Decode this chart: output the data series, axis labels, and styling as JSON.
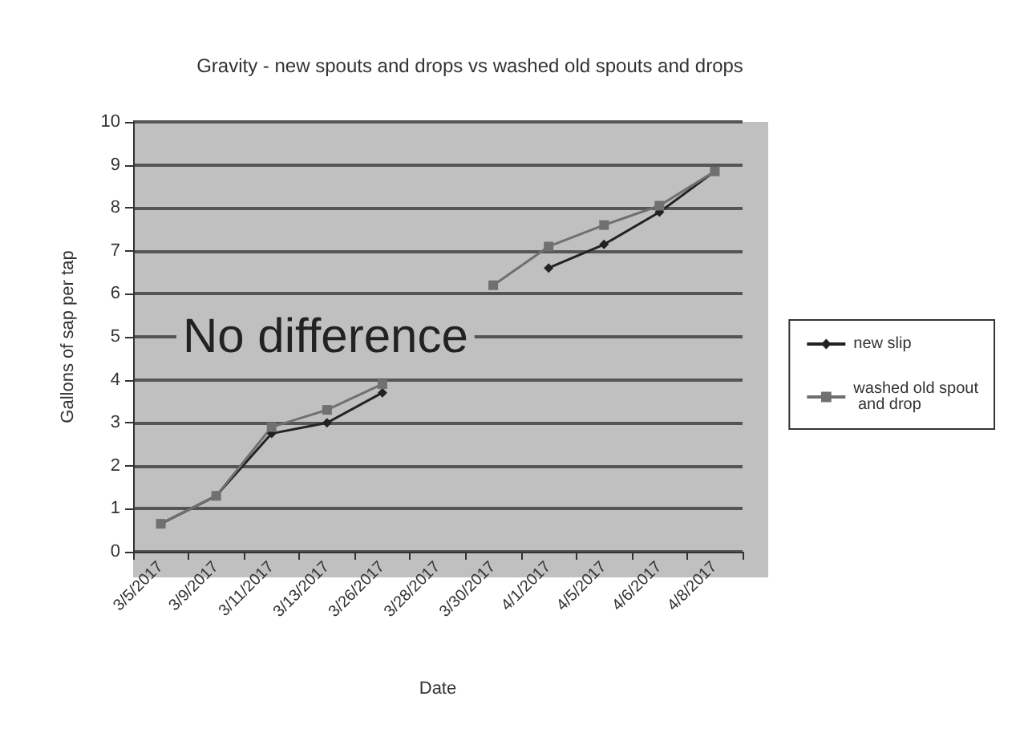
{
  "chart_data": {
    "type": "line",
    "title": "Gravity - new spouts and drops vs washed old spouts and drops",
    "xlabel": "Date",
    "ylabel": "Gallons of sap per tap",
    "categories": [
      "3/5/2017",
      "3/9/2017",
      "3/11/2017",
      "3/13/2017",
      "3/26/2017",
      "3/28/2017",
      "3/30/2017",
      "4/1/2017",
      "4/5/2017",
      "4/6/2017",
      "4/8/2017"
    ],
    "series": [
      {
        "name": "new slip",
        "color": "#222222",
        "marker": "diamond",
        "values": [
          0.65,
          1.3,
          2.75,
          3.0,
          3.7,
          null,
          null,
          6.6,
          7.15,
          7.9,
          8.85
        ]
      },
      {
        "name": "washed old spout and drop",
        "color": "#707070",
        "marker": "square",
        "values": [
          0.65,
          1.3,
          2.9,
          3.3,
          3.9,
          null,
          6.2,
          7.1,
          7.6,
          8.05,
          8.85
        ]
      }
    ],
    "ylim": [
      0,
      10
    ],
    "yticks": [
      0,
      1,
      2,
      3,
      4,
      5,
      6,
      7,
      8,
      9,
      10
    ],
    "grid": "y",
    "legend": "right",
    "line_style": "solid",
    "annotations": [
      "No difference"
    ]
  }
}
